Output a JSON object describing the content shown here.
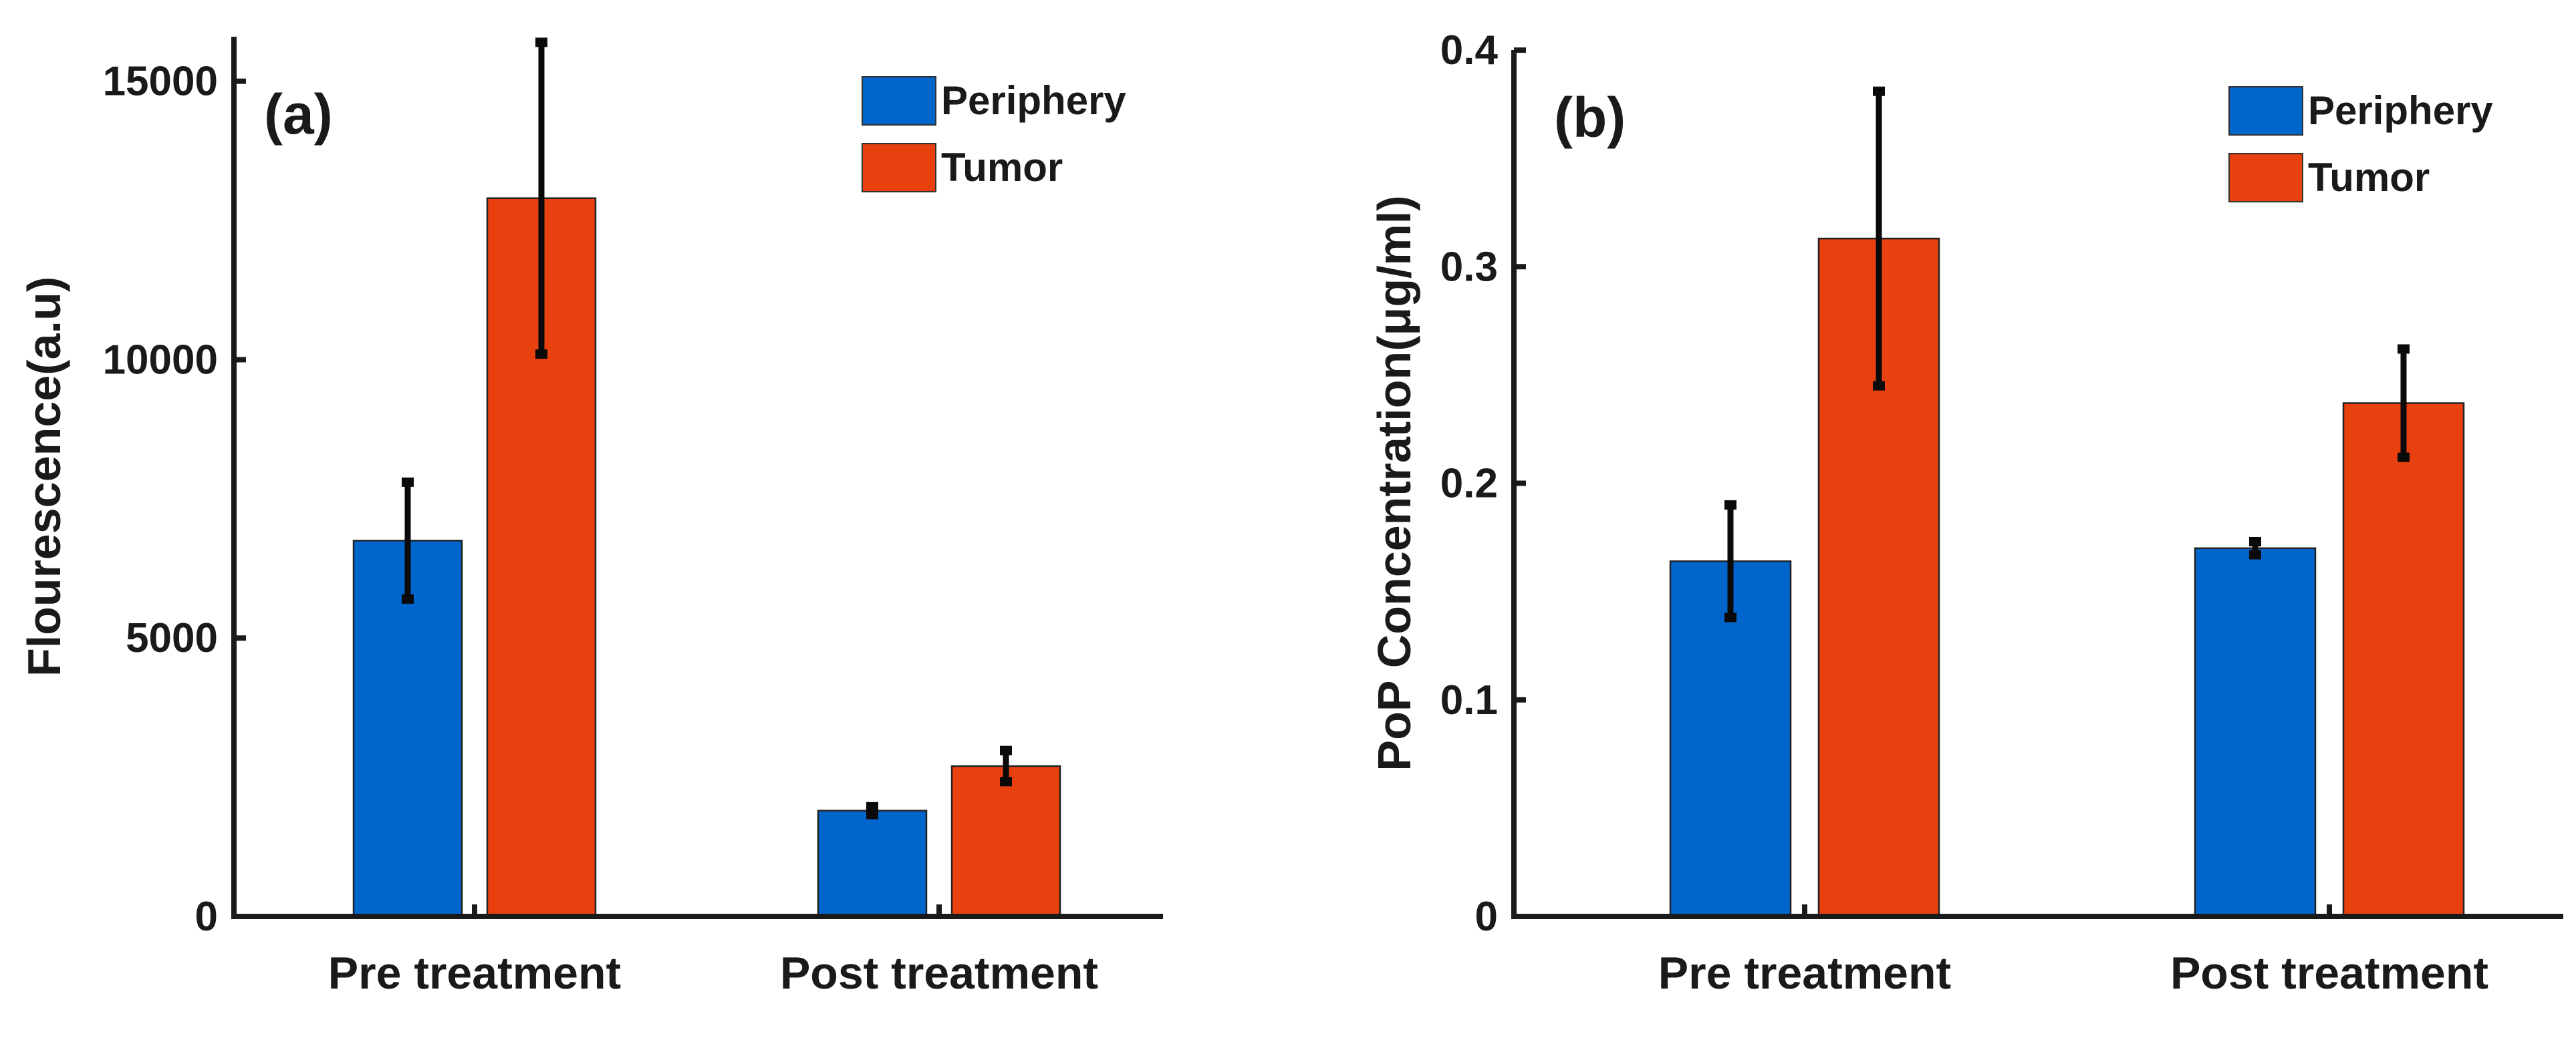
{
  "chart_data": [
    {
      "type": "bar",
      "panel_label": "(a)",
      "ylabel": "Flourescence(a.u)",
      "xlabel": "",
      "categories": [
        "Pre treatment",
        "Post treatment"
      ],
      "ylim": [
        0,
        15800
      ],
      "yticks": [
        0,
        5000,
        10000,
        15000
      ],
      "ytick_labels": [
        "0",
        "5000",
        "10000",
        "15000"
      ],
      "series": [
        {
          "name": "Periphery",
          "color": "#0066cc",
          "values": [
            6750,
            1900
          ],
          "errors": [
            1050,
            70
          ]
        },
        {
          "name": "Tumor",
          "color": "#e8400f",
          "values": [
            12900,
            2700
          ],
          "errors": [
            2800,
            280
          ]
        }
      ],
      "legend": {
        "position": "top-right",
        "entries": [
          "Periphery",
          "Tumor"
        ]
      }
    },
    {
      "type": "bar",
      "panel_label": "(b)",
      "ylabel": "PoP Concentration(μg/ml)",
      "xlabel": "",
      "categories": [
        "Pre treatment",
        "Post treatment"
      ],
      "ylim": [
        0,
        0.4
      ],
      "yticks": [
        0,
        0.1,
        0.2,
        0.3,
        0.4
      ],
      "ytick_labels": [
        "0",
        "0.1",
        "0.2",
        "0.3",
        "0.4"
      ],
      "series": [
        {
          "name": "Periphery",
          "color": "#0066cc",
          "values": [
            0.164,
            0.17
          ],
          "errors": [
            0.026,
            0.003
          ]
        },
        {
          "name": "Tumor",
          "color": "#e8400f",
          "values": [
            0.313,
            0.237
          ],
          "errors": [
            0.068,
            0.025
          ]
        }
      ],
      "legend": {
        "position": "top-right",
        "entries": [
          "Periphery",
          "Tumor"
        ]
      }
    }
  ]
}
